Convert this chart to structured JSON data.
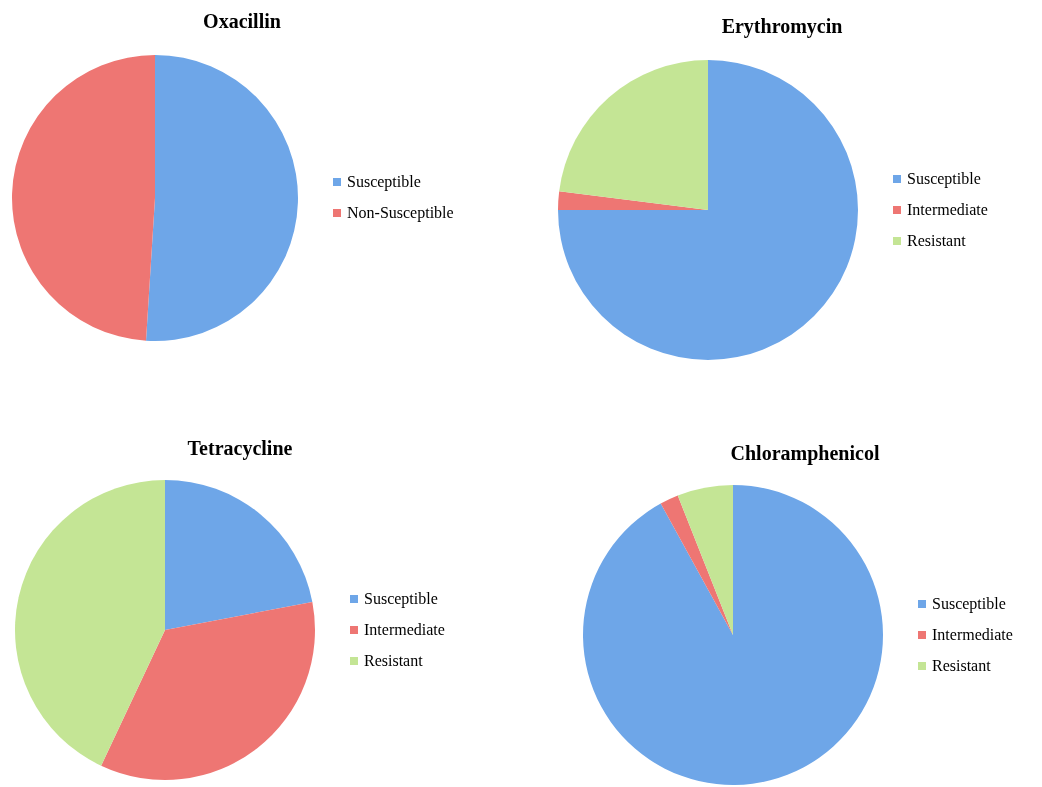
{
  "chart_data": [
    {
      "type": "pie",
      "title": "Oxacillin",
      "categories": [
        "Susceptible",
        "Non-Susceptible"
      ],
      "values": [
        51,
        49
      ],
      "colors": [
        "#6ea6e8",
        "#ee7673"
      ],
      "legend": "right"
    },
    {
      "type": "pie",
      "title": "Erythromycin",
      "categories": [
        "Susceptible",
        "Intermediate",
        "Resistant"
      ],
      "values": [
        75,
        2,
        23
      ],
      "colors": [
        "#6ea6e8",
        "#ee7673",
        "#c4e595"
      ],
      "legend": "right"
    },
    {
      "type": "pie",
      "title": "Tetracycline",
      "categories": [
        "Susceptible",
        "Intermediate",
        "Resistant"
      ],
      "values": [
        22,
        35,
        43
      ],
      "colors": [
        "#6ea6e8",
        "#ee7673",
        "#c4e595"
      ],
      "legend": "right"
    },
    {
      "type": "pie",
      "title": "Chloramphenicol",
      "categories": [
        "Susceptible",
        "Intermediate",
        "Resistant"
      ],
      "values": [
        92,
        2,
        6
      ],
      "colors": [
        "#6ea6e8",
        "#ee7673",
        "#c4e595"
      ],
      "legend": "right"
    }
  ]
}
